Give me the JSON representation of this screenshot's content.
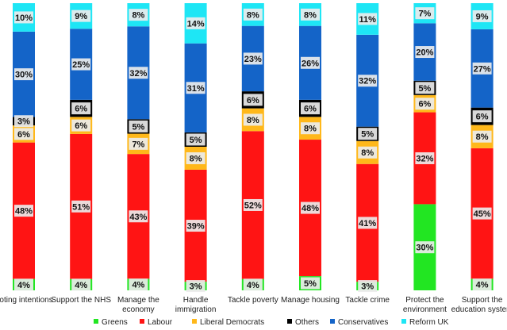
{
  "chart_data": {
    "type": "bar",
    "stacked": true,
    "percent": true,
    "legend_position": "bottom",
    "grid": false,
    "categories": [
      [
        "Voting intentions"
      ],
      [
        "Support the NHS"
      ],
      [
        "Manage the",
        "economy"
      ],
      [
        "Handle",
        "immigration"
      ],
      [
        "Tackle poverty"
      ],
      [
        "Manage housing"
      ],
      [
        "Tackle crime"
      ],
      [
        "Protect the",
        "environment"
      ],
      [
        "Support the",
        "education system"
      ]
    ],
    "series": [
      {
        "name": "Greens",
        "color": "#22e622",
        "values": [
          4,
          4,
          4,
          3,
          4,
          5,
          3,
          30,
          4
        ]
      },
      {
        "name": "Labour",
        "color": "#ff1414",
        "values": [
          48,
          51,
          43,
          39,
          52,
          48,
          41,
          32,
          45
        ]
      },
      {
        "name": "Liberal Democrats",
        "color": "#ffb81a",
        "values": [
          6,
          6,
          7,
          8,
          8,
          8,
          8,
          6,
          8
        ]
      },
      {
        "name": "Others",
        "color": "#000000",
        "values": [
          3,
          6,
          5,
          5,
          6,
          6,
          5,
          5,
          6
        ]
      },
      {
        "name": "Conservatives",
        "color": "#1464c8",
        "values": [
          30,
          25,
          32,
          31,
          23,
          26,
          32,
          20,
          27
        ]
      },
      {
        "name": "Reform UK",
        "color": "#1ee6f5",
        "values": [
          10,
          9,
          8,
          14,
          8,
          8,
          11,
          7,
          9
        ]
      }
    ]
  }
}
